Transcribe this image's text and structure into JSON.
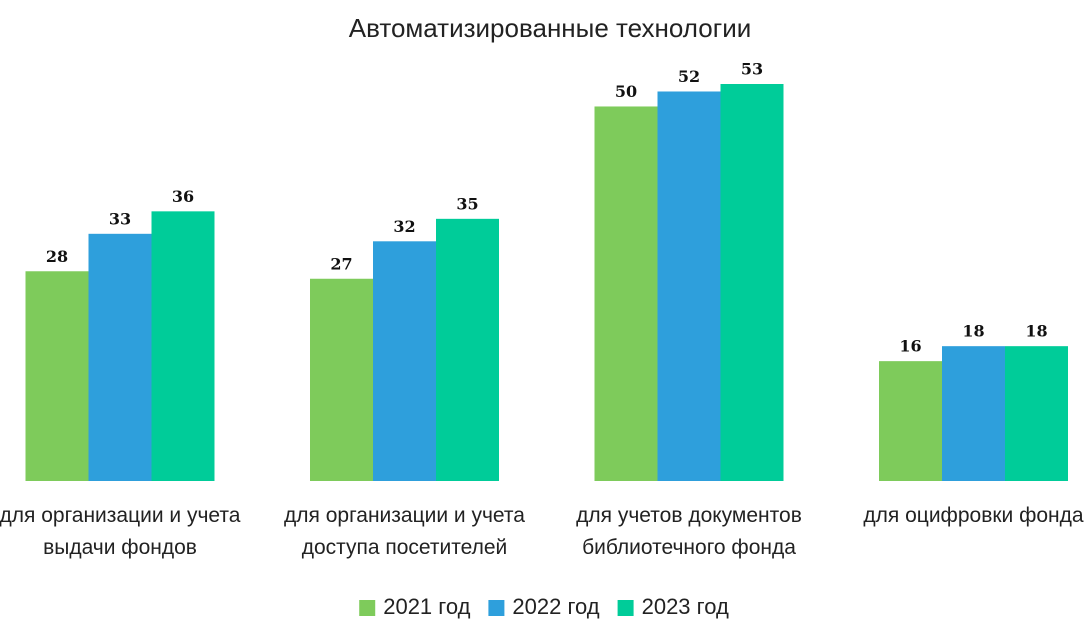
{
  "chart_data": {
    "type": "bar",
    "title": "Автоматизированные технологии",
    "categories": [
      "для организации и учета выдачи фондов",
      "для организации и учета доступа посетителей",
      "для учетов документов библиотечного фонда",
      "для оцифровки фонда"
    ],
    "series": [
      {
        "name": "2021 год",
        "color": "#7ecb5b",
        "values": [
          28,
          27,
          50,
          16
        ]
      },
      {
        "name": "2022 год",
        "color": "#2e9fdc",
        "values": [
          33,
          32,
          52,
          18
        ]
      },
      {
        "name": "2023 год",
        "color": "#00cc99",
        "values": [
          36,
          35,
          53,
          18
        ]
      }
    ],
    "legend": "bottom"
  }
}
